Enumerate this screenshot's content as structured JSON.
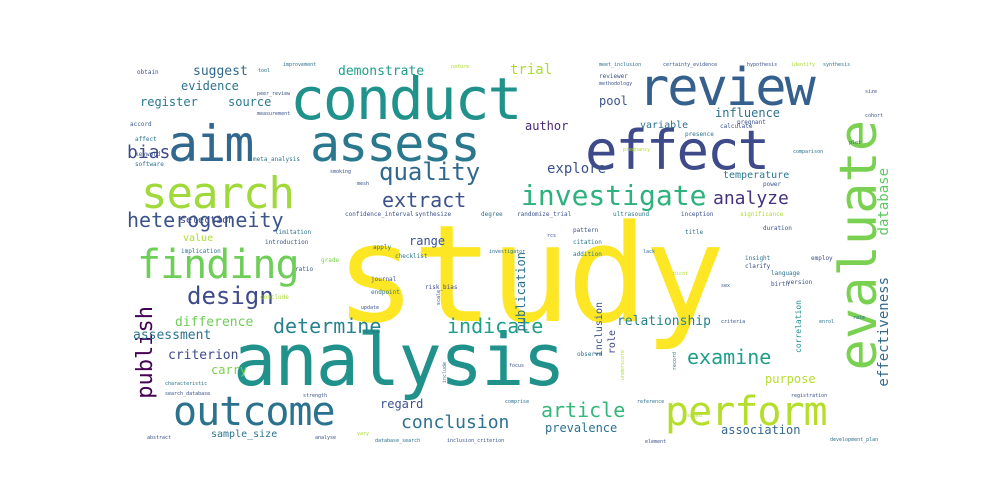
{
  "colors": {
    "background": "#ffffff",
    "palette": [
      "#440154",
      "#472d7b",
      "#3b528b",
      "#2c728e",
      "#21918c",
      "#28ae80",
      "#5ec962",
      "#addc30",
      "#fde725"
    ]
  },
  "words": [
    {
      "text": "study",
      "weight": 1.0,
      "color": "#fde725"
    },
    {
      "text": "analysis",
      "weight": 0.82,
      "color": "#21918c"
    },
    {
      "text": "conduct",
      "weight": 0.62,
      "color": "#21918c"
    },
    {
      "text": "evaluate",
      "weight": 0.6,
      "color": "#7ad151"
    },
    {
      "text": "aim",
      "weight": 0.55,
      "color": "#31688e"
    },
    {
      "text": "assess",
      "weight": 0.52,
      "color": "#2a788e"
    },
    {
      "text": "effect",
      "weight": 0.52,
      "color": "#3e4a89"
    },
    {
      "text": "review",
      "weight": 0.5,
      "color": "#35608d"
    },
    {
      "text": "search",
      "weight": 0.45,
      "color": "#9fda3a"
    },
    {
      "text": "outcome",
      "weight": 0.42,
      "color": "#2c728e"
    },
    {
      "text": "perform",
      "weight": 0.42,
      "color": "#b5de2b"
    },
    {
      "text": "finding",
      "weight": 0.4,
      "color": "#6ece58"
    },
    {
      "text": "investigate",
      "weight": 0.3,
      "color": "#2db27d"
    },
    {
      "text": "quality",
      "weight": 0.26,
      "color": "#31688e"
    },
    {
      "text": "design",
      "weight": 0.24,
      "color": "#3e4a89"
    },
    {
      "text": "heterogeneity",
      "weight": 0.22,
      "color": "#3b528b"
    },
    {
      "text": "extract",
      "weight": 0.22,
      "color": "#3b528b"
    },
    {
      "text": "determine",
      "weight": 0.22,
      "color": "#26828e"
    },
    {
      "text": "indicate",
      "weight": 0.22,
      "color": "#1f9e89"
    },
    {
      "text": "article",
      "weight": 0.22,
      "color": "#35b779"
    },
    {
      "text": "publish",
      "weight": 0.22,
      "color": "#440154"
    },
    {
      "text": "examine",
      "weight": 0.2,
      "color": "#1f9e89"
    },
    {
      "text": "conclusion",
      "weight": 0.2,
      "color": "#2c728e"
    },
    {
      "text": "analyze",
      "weight": 0.2,
      "color": "#46327e"
    },
    {
      "text": "bias",
      "weight": 0.18,
      "color": "#3e4a89"
    },
    {
      "text": "effectiveness",
      "weight": 0.16,
      "color": "#31688e"
    },
    {
      "text": "suggest",
      "weight": 0.14,
      "color": "#31688e"
    },
    {
      "text": "demonstrate",
      "weight": 0.14,
      "color": "#1f9e89"
    },
    {
      "text": "trial",
      "weight": 0.14,
      "color": "#addc30"
    },
    {
      "text": "evidence",
      "weight": 0.13,
      "color": "#2c728e"
    },
    {
      "text": "register",
      "weight": 0.13,
      "color": "#2a788e"
    },
    {
      "text": "source",
      "weight": 0.13,
      "color": "#2a788e"
    },
    {
      "text": "author",
      "weight": 0.13,
      "color": "#482878"
    },
    {
      "text": "pool",
      "weight": 0.13,
      "color": "#3b528b"
    },
    {
      "text": "influence",
      "weight": 0.12,
      "color": "#2c728e"
    },
    {
      "text": "explore",
      "weight": 0.12,
      "color": "#3b528b"
    },
    {
      "text": "temperature",
      "weight": 0.1,
      "color": "#2a788e"
    },
    {
      "text": "database",
      "weight": 0.12,
      "color": "#5ec962"
    },
    {
      "text": "relationship",
      "weight": 0.12,
      "color": "#26828e"
    },
    {
      "text": "difference",
      "weight": 0.12,
      "color": "#6ece58"
    },
    {
      "text": "assessment",
      "weight": 0.12,
      "color": "#2c728e"
    },
    {
      "text": "criterion",
      "weight": 0.12,
      "color": "#3e4a89"
    },
    {
      "text": "carry",
      "weight": 0.11,
      "color": "#7ad151"
    },
    {
      "text": "purpose",
      "weight": 0.11,
      "color": "#b5de2b"
    },
    {
      "text": "regard",
      "weight": 0.11,
      "color": "#3b528b"
    },
    {
      "text": "prevalence",
      "weight": 0.11,
      "color": "#2c728e"
    },
    {
      "text": "association",
      "weight": 0.11,
      "color": "#31688e"
    },
    {
      "text": "range",
      "weight": 0.11,
      "color": "#3b528b"
    },
    {
      "text": "publication",
      "weight": 0.11,
      "color": "#2c728e"
    },
    {
      "text": "inclusion",
      "weight": 0.09,
      "color": "#3b528b"
    },
    {
      "text": "role",
      "weight": 0.09,
      "color": "#3e4a89"
    },
    {
      "text": "correlation",
      "weight": 0.07,
      "color": "#21918c"
    },
    {
      "text": "variable",
      "weight": 0.09,
      "color": "#2c728e"
    },
    {
      "text": "selection",
      "weight": 0.09,
      "color": "#3e4a89"
    },
    {
      "text": "value",
      "weight": 0.09,
      "color": "#addc30"
    },
    {
      "text": "sample_size",
      "weight": 0.08,
      "color": "#2c728e"
    },
    {
      "text": "reviewer",
      "weight": 0.06,
      "color": "#3b528b"
    },
    {
      "text": "observe",
      "weight": 0.06,
      "color": "#2c728e"
    },
    {
      "text": "clarify",
      "weight": 0.06,
      "color": "#3e4a89"
    },
    {
      "text": "language",
      "weight": 0.06,
      "color": "#2c728e"
    },
    {
      "text": "birth",
      "weight": 0.05,
      "color": "#3b528b"
    },
    {
      "text": "duration",
      "weight": 0.05,
      "color": "#3b528b"
    },
    {
      "text": "comparison",
      "weight": 0.04,
      "color": "#2c728e"
    },
    {
      "text": "employ",
      "weight": 0.05,
      "color": "#3b528b"
    },
    {
      "text": "version",
      "weight": 0.05,
      "color": "#3b528b"
    },
    {
      "text": "citation",
      "weight": 0.05,
      "color": "#2a788e"
    },
    {
      "text": "addition",
      "weight": 0.05,
      "color": "#2a788e"
    },
    {
      "text": "pattern",
      "weight": 0.05,
      "color": "#3b528b"
    },
    {
      "text": "risk_bias",
      "weight": 0.05,
      "color": "#3e4a89"
    },
    {
      "text": "journal",
      "weight": 0.05,
      "color": "#3b528b"
    },
    {
      "text": "endpoint",
      "weight": 0.05,
      "color": "#2c728e"
    },
    {
      "text": "grade",
      "weight": 0.05,
      "color": "#7ad151"
    },
    {
      "text": "apply",
      "weight": 0.05,
      "color": "#2c728e"
    },
    {
      "text": "checklist",
      "weight": 0.04,
      "color": "#2a788e"
    },
    {
      "text": "confidence_interval",
      "weight": 0.04,
      "color": "#3b528b"
    },
    {
      "text": "synthesize",
      "weight": 0.04,
      "color": "#3b528b"
    },
    {
      "text": "degree",
      "weight": 0.04,
      "color": "#2c728e"
    },
    {
      "text": "randomize_trial",
      "weight": 0.04,
      "color": "#3b528b"
    },
    {
      "text": "implication",
      "weight": 0.04,
      "color": "#2c728e"
    },
    {
      "text": "introduction",
      "weight": 0.04,
      "color": "#3b528b"
    },
    {
      "text": "limitation",
      "weight": 0.04,
      "color": "#2c728e"
    },
    {
      "text": "ratio",
      "weight": 0.04,
      "color": "#3b528b"
    },
    {
      "text": "conclude",
      "weight": 0.04,
      "color": "#addc30"
    },
    {
      "text": "ultrasound",
      "weight": 0.04,
      "color": "#2a788e"
    },
    {
      "text": "title",
      "weight": 0.04,
      "color": "#2c728e"
    },
    {
      "text": "inception",
      "weight": 0.04,
      "color": "#3b528b"
    },
    {
      "text": "significance",
      "weight": 0.04,
      "color": "#addc30"
    },
    {
      "text": "insight",
      "weight": 0.04,
      "color": "#2c728e"
    },
    {
      "text": "pregnancy",
      "weight": 0.04,
      "color": "#addc30"
    },
    {
      "text": "presence",
      "weight": 0.04,
      "color": "#2c728e"
    },
    {
      "text": "calculate",
      "weight": 0.04,
      "color": "#3b528b"
    },
    {
      "text": "pregnant",
      "weight": 0.04,
      "color": "#3b528b"
    },
    {
      "text": "power",
      "weight": 0.04,
      "color": "#3b528b"
    },
    {
      "text": "meet_inclusion",
      "weight": 0.04,
      "color": "#2c728e"
    },
    {
      "text": "certainty_evidence",
      "weight": 0.04,
      "color": "#3b528b"
    },
    {
      "text": "hypothesis",
      "weight": 0.04,
      "color": "#3b528b"
    },
    {
      "text": "identify",
      "weight": 0.04,
      "color": "#addc30"
    },
    {
      "text": "synthesis",
      "weight": 0.04,
      "color": "#2c728e"
    },
    {
      "text": "methodology",
      "weight": 0.03,
      "color": "#3b528b"
    },
    {
      "text": "improvement",
      "weight": 0.04,
      "color": "#2c728e"
    },
    {
      "text": "peer_review",
      "weight": 0.03,
      "color": "#3b528b"
    },
    {
      "text": "measurement",
      "weight": 0.03,
      "color": "#3b528b"
    },
    {
      "text": "meta_analysis",
      "weight": 0.04,
      "color": "#2c728e"
    },
    {
      "text": "obtain",
      "weight": 0.04,
      "color": "#3b528b"
    },
    {
      "text": "accord",
      "weight": 0.04,
      "color": "#3b528b"
    },
    {
      "text": "affect",
      "weight": 0.04,
      "color": "#2c728e"
    },
    {
      "text": "keyword",
      "weight": 0.04,
      "color": "#3b528b"
    },
    {
      "text": "software",
      "weight": 0.04,
      "color": "#2c728e"
    },
    {
      "text": "smoking",
      "weight": 0.03,
      "color": "#3b528b"
    },
    {
      "text": "mesh",
      "weight": 0.03,
      "color": "#3b528b"
    },
    {
      "text": "nature",
      "weight": 0.03,
      "color": "#addc30"
    },
    {
      "text": "tool",
      "weight": 0.04,
      "color": "#2c728e"
    },
    {
      "text": "characteristic",
      "weight": 0.04,
      "color": "#2c728e"
    },
    {
      "text": "search_database",
      "weight": 0.03,
      "color": "#3b528b"
    },
    {
      "text": "abstract",
      "weight": 0.04,
      "color": "#3b528b"
    },
    {
      "text": "strength",
      "weight": 0.04,
      "color": "#3b528b"
    },
    {
      "text": "analyse",
      "weight": 0.04,
      "color": "#3b528b"
    },
    {
      "text": "vary",
      "weight": 0.04,
      "color": "#addc30"
    },
    {
      "text": "database_search",
      "weight": 0.04,
      "color": "#2c728e"
    },
    {
      "text": "inclusion_criterion",
      "weight": 0.04,
      "color": "#3b528b"
    },
    {
      "text": "comprise",
      "weight": 0.04,
      "color": "#2c728e"
    },
    {
      "text": "include",
      "weight": 0.04,
      "color": "#2c728e"
    },
    {
      "text": "scale",
      "weight": 0.04,
      "color": "#3b528b"
    },
    {
      "text": "focus",
      "weight": 0.04,
      "color": "#3b528b"
    },
    {
      "text": "update",
      "weight": 0.04,
      "color": "#3b528b"
    },
    {
      "text": "registration",
      "weight": 0.04,
      "color": "#3b528b"
    },
    {
      "text": "reference",
      "weight": 0.04,
      "color": "#2c728e"
    },
    {
      "text": "record",
      "weight": 0.04,
      "color": "#2a788e"
    },
    {
      "text": "speed",
      "weight": 0.04,
      "color": "#addc30"
    },
    {
      "text": "element",
      "weight": 0.04,
      "color": "#3b528b"
    },
    {
      "text": "development_plan",
      "weight": 0.04,
      "color": "#2c728e"
    },
    {
      "text": "size",
      "weight": 0.03,
      "color": "#3b528b"
    },
    {
      "text": "plot",
      "weight": 0.03,
      "color": "#3b528b"
    },
    {
      "text": "cohort",
      "weight": 0.03,
      "color": "#3b528b"
    },
    {
      "text": "enrol",
      "weight": 0.03,
      "color": "#2c728e"
    },
    {
      "text": "rate",
      "weight": 0.03,
      "color": "#2c728e"
    },
    {
      "text": "rcs",
      "weight": 0.04,
      "color": "#3b528b"
    },
    {
      "text": "investigator",
      "weight": 0.03,
      "color": "#2c728e"
    },
    {
      "text": "lack",
      "weight": 0.04,
      "color": "#2c728e"
    },
    {
      "text": "underscore",
      "weight": 0.03,
      "color": "#addc30"
    },
    {
      "text": "criteria",
      "weight": 0.03,
      "color": "#3b528b"
    },
    {
      "text": "picot",
      "weight": 0.03,
      "color": "#addc30"
    },
    {
      "text": "sex",
      "weight": 0.03,
      "color": "#3b528b"
    }
  ]
}
